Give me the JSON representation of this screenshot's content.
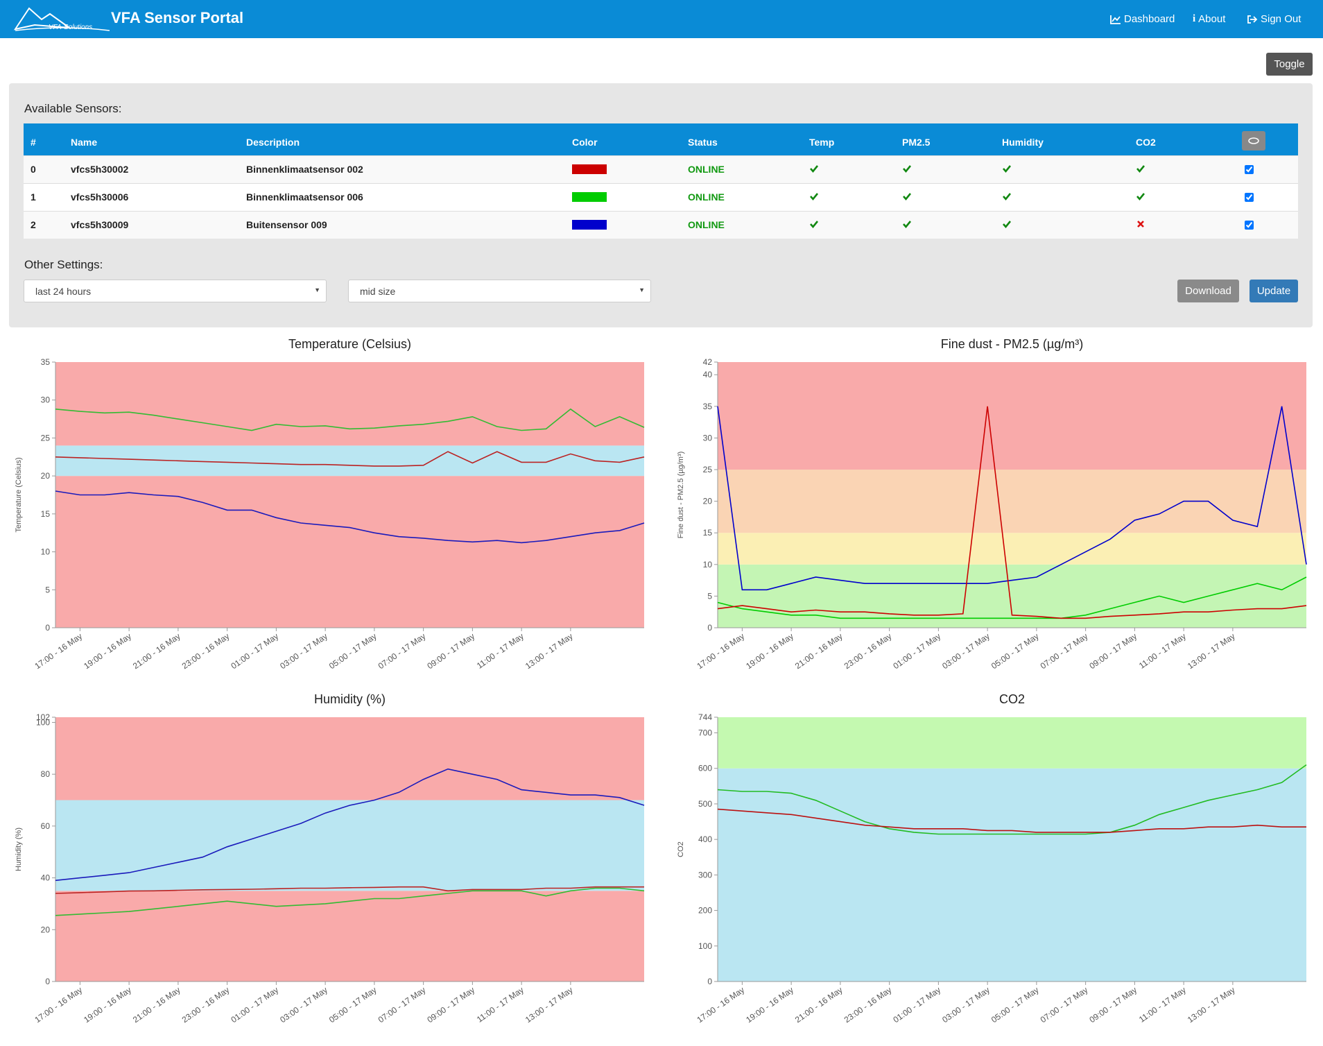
{
  "header": {
    "brand": "VFA Sensor Portal",
    "logo_text": "VFA-Solutions",
    "nav": [
      "Dashboard",
      "About",
      "Sign Out"
    ]
  },
  "toggle": "Toggle",
  "sensors": {
    "title": "Available Sensors:",
    "columns": [
      "#",
      "Name",
      "Description",
      "Color",
      "Status",
      "Temp",
      "PM2.5",
      "Humidity",
      "CO2"
    ],
    "rows": [
      {
        "id": 0,
        "name": "vfcs5h30002",
        "description": "Binnenklimaatsensor 002",
        "color": "#cc0000",
        "status": "ONLINE",
        "temp": true,
        "pm25": true,
        "humidity": true,
        "co2": true,
        "selected": true
      },
      {
        "id": 1,
        "name": "vfcs5h30006",
        "description": "Binnenklimaatsensor 006",
        "color": "#00cc00",
        "status": "ONLINE",
        "temp": true,
        "pm25": true,
        "humidity": true,
        "co2": true,
        "selected": true
      },
      {
        "id": 2,
        "name": "vfcs5h30009",
        "description": "Buitensensor 009",
        "color": "#0000cc",
        "status": "ONLINE",
        "temp": true,
        "pm25": true,
        "humidity": true,
        "co2": false,
        "selected": true
      }
    ]
  },
  "settings": {
    "title": "Other Settings:",
    "period": "last 24 hours",
    "size": "mid size",
    "buttons": [
      "Download",
      "Update"
    ]
  },
  "chart_data": [
    {
      "type": "line",
      "title": "Temperature (Celsius)",
      "y_label": "Temperature (Celsius)",
      "ylim": [
        0,
        35
      ],
      "yticks": [
        0,
        5,
        10,
        15,
        20,
        25,
        30,
        35
      ],
      "bands": [
        {
          "from": 0,
          "to": 20,
          "color": "#f9aaaa"
        },
        {
          "from": 20,
          "to": 24,
          "color": "#bae6f2"
        },
        {
          "from": 24,
          "to": 35,
          "color": "#f9aaaa"
        }
      ],
      "categories": [
        null,
        "17:00 - 16 May",
        null,
        "19:00 - 16 May",
        null,
        "21:00 - 16 May",
        null,
        "23:00 - 16 May",
        null,
        "01:00 - 17 May",
        null,
        "03:00 - 17 May",
        null,
        "05:00 - 17 May",
        null,
        "07:00 - 17 May",
        null,
        "09:00 - 17 May",
        null,
        "11:00 - 17 May",
        null,
        "13:00 - 17 May",
        null,
        null,
        null
      ],
      "series": [
        {
          "color": "#bb2222",
          "values": [
            22.5,
            22.4,
            22.3,
            22.2,
            22.1,
            22.0,
            21.9,
            21.8,
            21.7,
            21.6,
            21.5,
            21.5,
            21.4,
            21.3,
            21.3,
            21.4,
            23.2,
            21.7,
            23.2,
            21.8,
            21.8,
            22.9,
            22.0,
            21.8,
            22.5
          ]
        },
        {
          "color": "#33bb33",
          "values": [
            28.8,
            28.5,
            28.3,
            28.4,
            28.0,
            27.5,
            27.0,
            26.5,
            26.0,
            26.8,
            26.5,
            26.6,
            26.2,
            26.3,
            26.6,
            26.8,
            27.2,
            27.8,
            26.5,
            26.0,
            26.2,
            28.8,
            26.5,
            27.8,
            26.4
          ]
        },
        {
          "color": "#1a1abb",
          "values": [
            18,
            17.5,
            17.5,
            17.8,
            17.5,
            17.3,
            16.5,
            15.5,
            15.5,
            14.5,
            13.8,
            13.5,
            13.2,
            12.5,
            12.0,
            11.8,
            11.5,
            11.3,
            11.5,
            11.2,
            11.5,
            12.0,
            12.5,
            12.8,
            13.8
          ]
        }
      ]
    },
    {
      "type": "line",
      "title": "Fine dust - PM2.5 (µg/m³)",
      "y_label": "Fine dust - PM2.5 (µg/m³)",
      "ylim": [
        0,
        42
      ],
      "yticks": [
        0,
        5,
        10,
        15,
        20,
        25,
        30,
        35,
        40,
        42
      ],
      "bands": [
        {
          "from": 0,
          "to": 10,
          "color": "#c4f5b4"
        },
        {
          "from": 10,
          "to": 15,
          "color": "#fbefb4"
        },
        {
          "from": 15,
          "to": 25,
          "color": "#fad4b4"
        },
        {
          "from": 25,
          "to": 42,
          "color": "#f9aaaa"
        }
      ],
      "categories": [
        null,
        "17:00 - 16 May",
        null,
        "19:00 - 16 May",
        null,
        "21:00 - 16 May",
        null,
        "23:00 - 16 May",
        null,
        "01:00 - 17 May",
        null,
        "03:00 - 17 May",
        null,
        "05:00 - 17 May",
        null,
        "07:00 - 17 May",
        null,
        "09:00 - 17 May",
        null,
        "11:00 - 17 May",
        null,
        "13:00 - 17 May",
        null,
        null,
        null
      ],
      "series": [
        {
          "color": "#0000cc",
          "values": [
            35,
            6,
            6,
            7,
            8,
            7.5,
            7,
            7,
            7,
            7,
            7,
            7,
            7.5,
            8,
            10,
            12,
            14,
            17,
            18,
            20,
            20,
            17,
            16,
            35,
            10
          ]
        },
        {
          "color": "#00cc00",
          "values": [
            4,
            3,
            2.5,
            2,
            2,
            1.5,
            1.5,
            1.5,
            1.5,
            1.5,
            1.5,
            1.5,
            1.5,
            1.5,
            1.5,
            2,
            3,
            4,
            5,
            4,
            5,
            6,
            7,
            6,
            8
          ]
        },
        {
          "color": "#cc0000",
          "values": [
            3,
            3.5,
            3,
            2.5,
            2.8,
            2.5,
            2.5,
            2.2,
            2,
            2,
            2.2,
            35,
            2,
            1.8,
            1.5,
            1.5,
            1.8,
            2,
            2.2,
            2.5,
            2.5,
            2.8,
            3,
            3,
            3.5
          ]
        }
      ]
    },
    {
      "type": "line",
      "title": "Humidity (%)",
      "y_label": "Humidity (%)",
      "ylim": [
        0,
        102
      ],
      "yticks": [
        0,
        20,
        40,
        60,
        80,
        100,
        102
      ],
      "bands": [
        {
          "from": 0,
          "to": 35,
          "color": "#f9aaaa"
        },
        {
          "from": 35,
          "to": 70,
          "color": "#bae6f2"
        },
        {
          "from": 70,
          "to": 102,
          "color": "#f9aaaa"
        }
      ],
      "categories": [
        null,
        "17:00 - 16 May",
        null,
        "19:00 - 16 May",
        null,
        "21:00 - 16 May",
        null,
        "23:00 - 16 May",
        null,
        "01:00 - 17 May",
        null,
        "03:00 - 17 May",
        null,
        "05:00 - 17 May",
        null,
        "07:00 - 17 May",
        null,
        "09:00 - 17 May",
        null,
        "11:00 - 17 May",
        null,
        "13:00 - 17 May",
        null,
        null,
        null
      ],
      "series": [
        {
          "color": "#bb2222",
          "values": [
            34,
            34.3,
            34.6,
            34.9,
            35,
            35.2,
            35.4,
            35.5,
            35.6,
            35.8,
            36,
            36,
            36.2,
            36.3,
            36.5,
            36.5,
            35,
            35.5,
            35.5,
            35.5,
            36,
            36,
            36.5,
            36.5,
            36.5
          ]
        },
        {
          "color": "#33bb33",
          "values": [
            25.5,
            26,
            26.5,
            27,
            28,
            29,
            30,
            31,
            30,
            29,
            29.5,
            30,
            31,
            32,
            32,
            33,
            34,
            35,
            35,
            35,
            33,
            35,
            36,
            36,
            35
          ]
        },
        {
          "color": "#1a1abb",
          "values": [
            39,
            40,
            41,
            42,
            44,
            46,
            48,
            52,
            55,
            58,
            61,
            65,
            68,
            70,
            73,
            78,
            82,
            80,
            78,
            74,
            73,
            72,
            72,
            71,
            68
          ]
        }
      ]
    },
    {
      "type": "line",
      "title": "CO2",
      "y_label": "CO2",
      "ylim": [
        0,
        744
      ],
      "yticks": [
        0,
        100,
        200,
        300,
        400,
        500,
        600,
        700,
        744
      ],
      "bands": [
        {
          "from": 0,
          "to": 600,
          "color": "#bae6f2"
        },
        {
          "from": 600,
          "to": 744,
          "color": "#c4f9b0"
        }
      ],
      "categories": [
        null,
        "17:00 - 16 May",
        null,
        "19:00 - 16 May",
        null,
        "21:00 - 16 May",
        null,
        "23:00 - 16 May",
        null,
        "01:00 - 17 May",
        null,
        "03:00 - 17 May",
        null,
        "05:00 - 17 May",
        null,
        "07:00 - 17 May",
        null,
        "09:00 - 17 May",
        null,
        "11:00 - 17 May",
        null,
        "13:00 - 17 May",
        null,
        null,
        null
      ],
      "series": [
        {
          "color": "#22bb22",
          "values": [
            540,
            535,
            535,
            530,
            510,
            480,
            450,
            430,
            420,
            415,
            415,
            415,
            415,
            415,
            415,
            415,
            420,
            440,
            470,
            490,
            510,
            525,
            540,
            560,
            610
          ]
        },
        {
          "color": "#bb1111",
          "values": [
            485,
            480,
            475,
            470,
            460,
            450,
            440,
            435,
            430,
            430,
            430,
            425,
            425,
            420,
            420,
            420,
            420,
            425,
            430,
            430,
            435,
            435,
            440,
            435,
            435
          ]
        }
      ]
    }
  ]
}
